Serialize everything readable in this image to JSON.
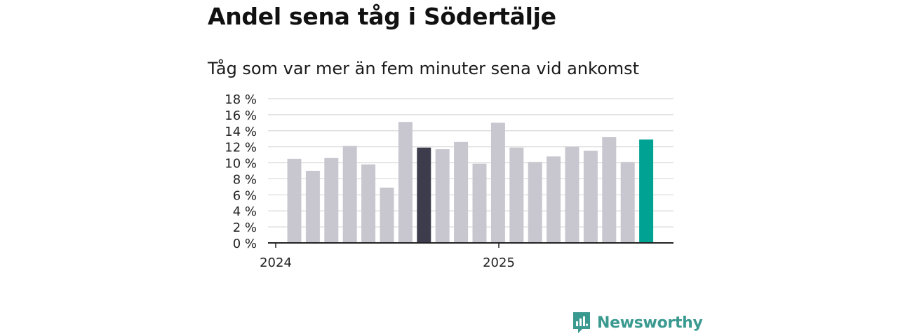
{
  "title": "Andel sena tåg i Södertälje",
  "subtitle": "Tåg som var mer än fem minuter sena vid ankomst",
  "brand": {
    "name": "Newsworthy"
  },
  "colors": {
    "bar_default": "#c8c7cf",
    "bar_reference": "#3d3c4c",
    "bar_latest": "#00a294",
    "grid": "#d9d9d9",
    "axis": "#222222",
    "brand": "#3a9a90"
  },
  "chart_data": {
    "type": "bar",
    "title": "Andel sena tåg i Södertälje",
    "subtitle": "Tåg som var mer än fem minuter sena vid ankomst",
    "ylim": [
      0,
      18
    ],
    "yticks": [
      0,
      2,
      4,
      6,
      8,
      10,
      12,
      14,
      16,
      18
    ],
    "ytick_labels": [
      "0 %",
      "2 %",
      "4 %",
      "6 %",
      "8 %",
      "10 %",
      "12 %",
      "14 %",
      "16 %",
      "18 %"
    ],
    "xtick_labels": [
      "2024",
      "2025"
    ],
    "grid": true,
    "values": [
      10.5,
      9.0,
      10.6,
      12.1,
      9.8,
      6.9,
      15.1,
      11.9,
      11.7,
      12.6,
      9.9,
      15.0,
      11.9,
      10.1,
      10.8,
      12.0,
      11.5,
      13.2,
      10.1,
      12.9
    ],
    "highlight": {
      "reference_index": 7,
      "latest_index": 19
    }
  }
}
